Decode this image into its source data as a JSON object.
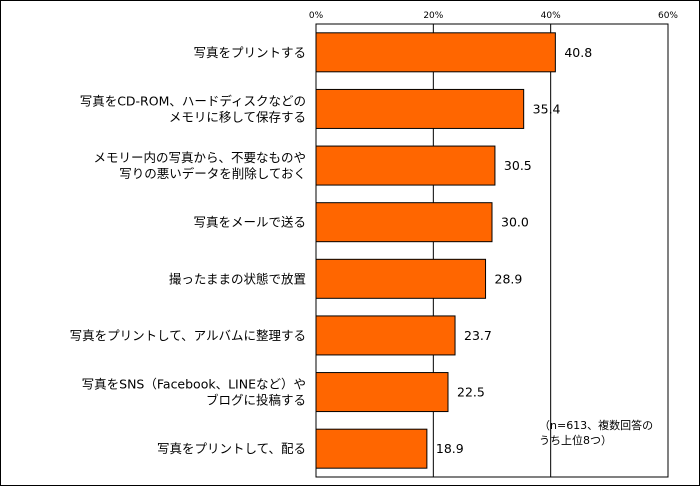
{
  "chart_data": {
    "type": "bar",
    "orientation": "horizontal",
    "categories": [
      [
        "写真をプリントする"
      ],
      [
        "写真をCD-ROM、ハードディスクなどの",
        "メモリに移して保存する"
      ],
      [
        "メモリー内の写真から、不要なものや",
        "写りの悪いデータを削除しておく"
      ],
      [
        "写真をメールで送る"
      ],
      [
        "撮ったままの状態で放置"
      ],
      [
        "写真をプリントして、アルバムに整理する"
      ],
      [
        "写真をSNS（Facebook、LINEなど）や",
        "ブログに投稿する"
      ],
      [
        "写真をプリントして、配る"
      ]
    ],
    "values": [
      40.8,
      35.4,
      30.5,
      30.0,
      28.9,
      23.7,
      22.5,
      18.9
    ],
    "value_labels": [
      "40.8",
      "35.4",
      "30.5",
      "30.0",
      "28.9",
      "23.7",
      "22.5",
      "18.9"
    ],
    "xlim": [
      0,
      60
    ],
    "ticks": [
      0,
      20,
      40,
      60
    ],
    "tick_labels": [
      "0%",
      "20%",
      "40%",
      "60%"
    ],
    "gridlines": [
      20,
      40
    ],
    "grid": true,
    "bar_color": "#ff6600",
    "note_lines": [
      "（n=613、複数回答の",
      "うち上位8つ）"
    ],
    "title": "",
    "xlabel": "",
    "ylabel": ""
  }
}
